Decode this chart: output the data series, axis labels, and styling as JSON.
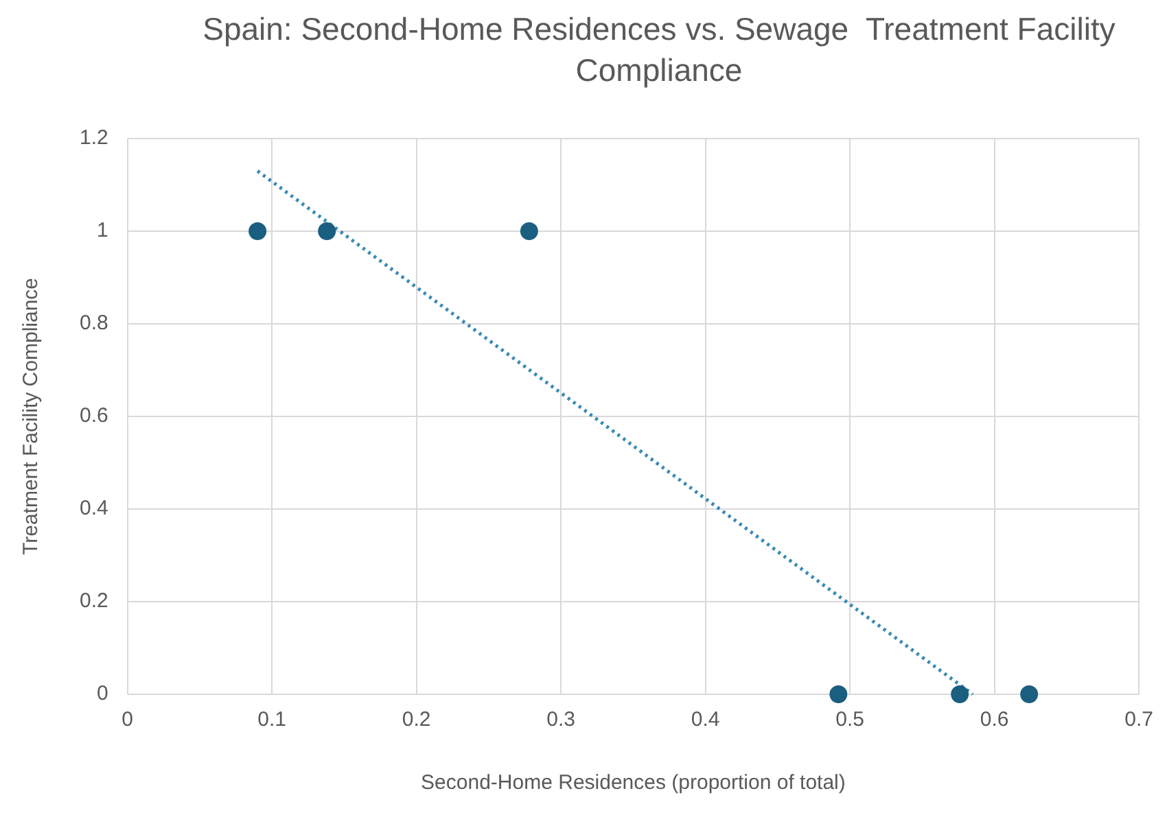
{
  "chart_data": {
    "type": "scatter",
    "title": "Spain: Second-Home Residences vs. Sewage  Treatment Facility Compliance",
    "xlabel": "Second-Home Residences (proportion of total)",
    "ylabel": "Treatment Facility Compliance",
    "xlim": [
      0,
      0.7
    ],
    "xticks": [
      0,
      0.1,
      0.2,
      0.3,
      0.4,
      0.5,
      0.6,
      0.7
    ],
    "ylim": [
      0,
      1.2
    ],
    "yticks": [
      0,
      0.2,
      0.4,
      0.6,
      0.8,
      1,
      1.2
    ],
    "grid": true,
    "marker": "circle",
    "series": [
      {
        "color": "#1b5f80",
        "x": [
          0.09,
          0.138,
          0.278,
          0.492,
          0.576,
          0.624
        ],
        "values": [
          1,
          1,
          1,
          0,
          0,
          0
        ]
      },
      {
        "type": "line",
        "color": "#3a8bb5",
        "line_style": "dotted",
        "marker": "none",
        "x": [
          0.09,
          0.585
        ],
        "values": [
          1.13,
          0
        ]
      }
    ]
  }
}
